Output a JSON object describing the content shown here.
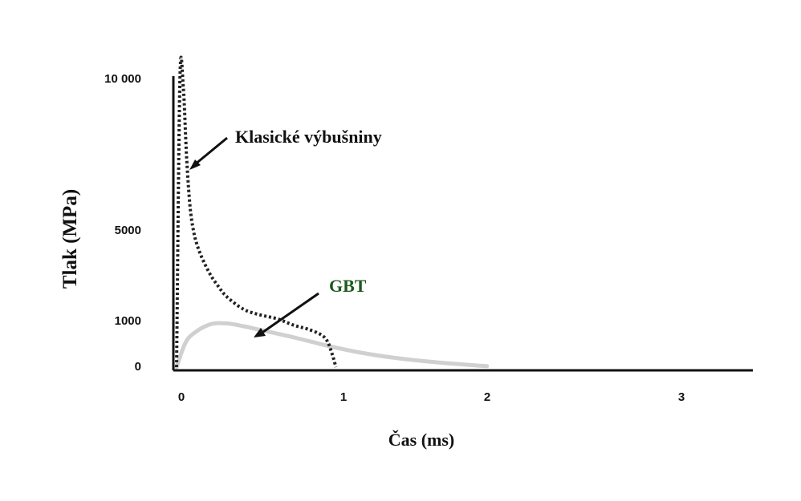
{
  "chart_data": {
    "type": "line",
    "xlabel": "Čas (ms)",
    "ylabel": "Tlak (MPa)",
    "xlim": [
      0,
      3.4
    ],
    "ylim": [
      0,
      10000
    ],
    "x_ticks": [
      {
        "value": 0,
        "label": "0"
      },
      {
        "value": 1,
        "label": "1"
      },
      {
        "value": 2,
        "label": "2"
      },
      {
        "value": 3,
        "label": "3"
      }
    ],
    "y_ticks": [
      {
        "value": 0,
        "label": "0"
      },
      {
        "value": 1000,
        "label": "1000"
      },
      {
        "value": 5000,
        "label": "5000"
      },
      {
        "value": 10000,
        "label": "10 000"
      }
    ],
    "y_scale_note": "non-linear pressure axis",
    "series": [
      {
        "name": "Klasické výbušniny",
        "style": "dotted",
        "color": "#222222",
        "x": [
          0.0,
          0.02,
          0.04,
          0.06,
          0.08,
          0.1,
          0.12,
          0.15,
          0.2,
          0.25,
          0.3,
          0.4,
          0.5,
          0.6,
          0.7,
          0.78,
          0.86,
          0.9,
          0.93,
          0.95
        ],
        "y": [
          0,
          10000,
          9700,
          7400,
          5800,
          5000,
          4400,
          3800,
          3050,
          2500,
          2050,
          1500,
          1250,
          1080,
          900,
          820,
          700,
          550,
          250,
          0
        ]
      },
      {
        "name": "GBT",
        "style": "solid",
        "color": "#d0d0d0",
        "x": [
          0.0,
          0.05,
          0.1,
          0.2,
          0.3,
          0.4,
          0.5,
          0.7,
          0.9,
          1.1,
          1.3,
          1.5,
          1.7,
          1.85
        ],
        "y": [
          0,
          500,
          720,
          920,
          940,
          880,
          800,
          640,
          460,
          310,
          200,
          120,
          60,
          20
        ]
      }
    ],
    "annotations": [
      {
        "text": "Klasické výbušniny",
        "color": "#111111",
        "points_to": "Klasické výbušniny"
      },
      {
        "text": "GBT",
        "color": "#1e5a1e",
        "points_to": "GBT"
      }
    ]
  }
}
